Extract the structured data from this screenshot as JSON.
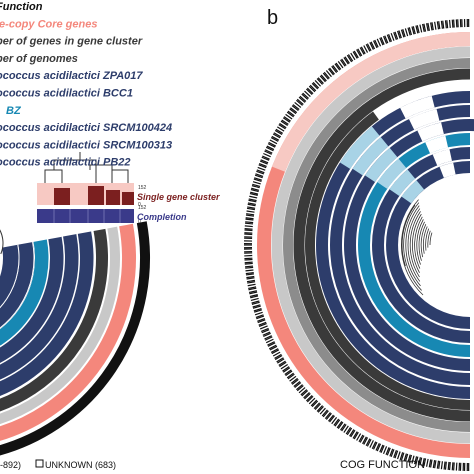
{
  "colors": {
    "salmon": "#f4877c",
    "pink_light": "#f7c9c3",
    "gray_dark": "#3a3a3a",
    "gray_mid": "#8c8c8c",
    "gray_light": "#c8c8c8",
    "navy": "#2d3d6b",
    "teal": "#1788b3",
    "light_blue": "#a8d3e6",
    "maroon": "#7b1f1f",
    "purple": "#3a3a8a",
    "black": "#111111"
  },
  "legend": {
    "items": [
      {
        "label": "Function",
        "color": "#111111"
      },
      {
        "label": "le-copy Core genes",
        "color": "#f4877c"
      },
      {
        "label": "ber of genes in gene cluster",
        "color": "#3a3a3a"
      },
      {
        "label": "ber of genomes",
        "color": "#3a3a3a"
      },
      {
        "label": "ococcus acidilactici ZPA017",
        "color": "#2d3d6b"
      },
      {
        "label": "ococcus acidilactici BCC1",
        "color": "#2d3d6b"
      },
      {
        "label": "BZ",
        "color": "#1788b3"
      },
      {
        "label": "ococcus acidilactici SRCM100424",
        "color": "#2d3d6b"
      },
      {
        "label": "ococcus acidilactici SRCM100313",
        "color": "#2d3d6b"
      },
      {
        "label": "ococcus acidilactici PB22",
        "color": "#2d3d6b"
      }
    ]
  },
  "panel_b_label": "b",
  "layer_labels": {
    "single_gene_cluster": "Single gene cluster",
    "completion": "Completion",
    "tick_152_top": "152",
    "tick_0_top": "0",
    "tick_152_bottom": "152",
    "tick_0_bottom": "0"
  },
  "footer": {
    "left_count": "-892)",
    "unknown_label": "UNKNOWN (683)",
    "right_label": "COG FUNCTION"
  }
}
